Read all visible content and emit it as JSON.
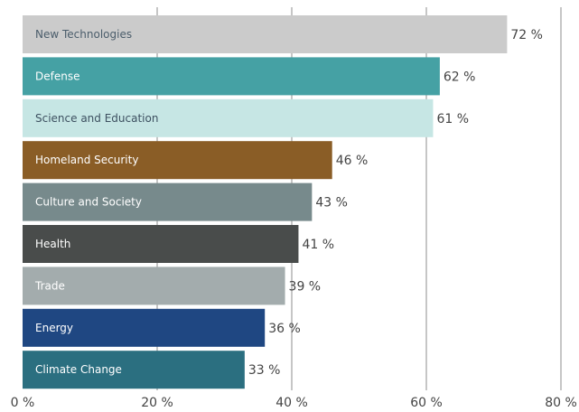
{
  "chart_data": {
    "type": "bar",
    "orientation": "horizontal",
    "title": "",
    "xlabel": "",
    "ylabel": "",
    "xlim": [
      0,
      80
    ],
    "x_ticks": [
      0,
      20,
      40,
      60,
      80
    ],
    "x_tick_labels": [
      "0 %",
      "20 %",
      "40 %",
      "60 %",
      "80 %"
    ],
    "grid": "vertical gridlines",
    "legend": "none",
    "categories": [
      "New Technologies",
      "Defense",
      "Science and Education",
      "Homeland Security",
      "Culture and Society",
      "Health",
      "Trade",
      "Energy",
      "Climate Change"
    ],
    "values": [
      72,
      62,
      61,
      46,
      43,
      41,
      39,
      36,
      33
    ],
    "value_labels": [
      "72 %",
      "62 %",
      "61 %",
      "46 %",
      "43 %",
      "41 %",
      "39 %",
      "36 %",
      "33 %"
    ],
    "bar_colors": [
      "#cbcbcb",
      "#45a1a4",
      "#c6e6e4",
      "#8a5d26",
      "#778a8c",
      "#494c4b",
      "#a3acad",
      "#1f4782",
      "#2b6f80"
    ],
    "label_colors": [
      "#4b5d6b",
      "#ffffff",
      "#3d5060",
      "#ffffff",
      "#ffffff",
      "#ffffff",
      "#ffffff",
      "#ffffff",
      "#ffffff"
    ]
  }
}
